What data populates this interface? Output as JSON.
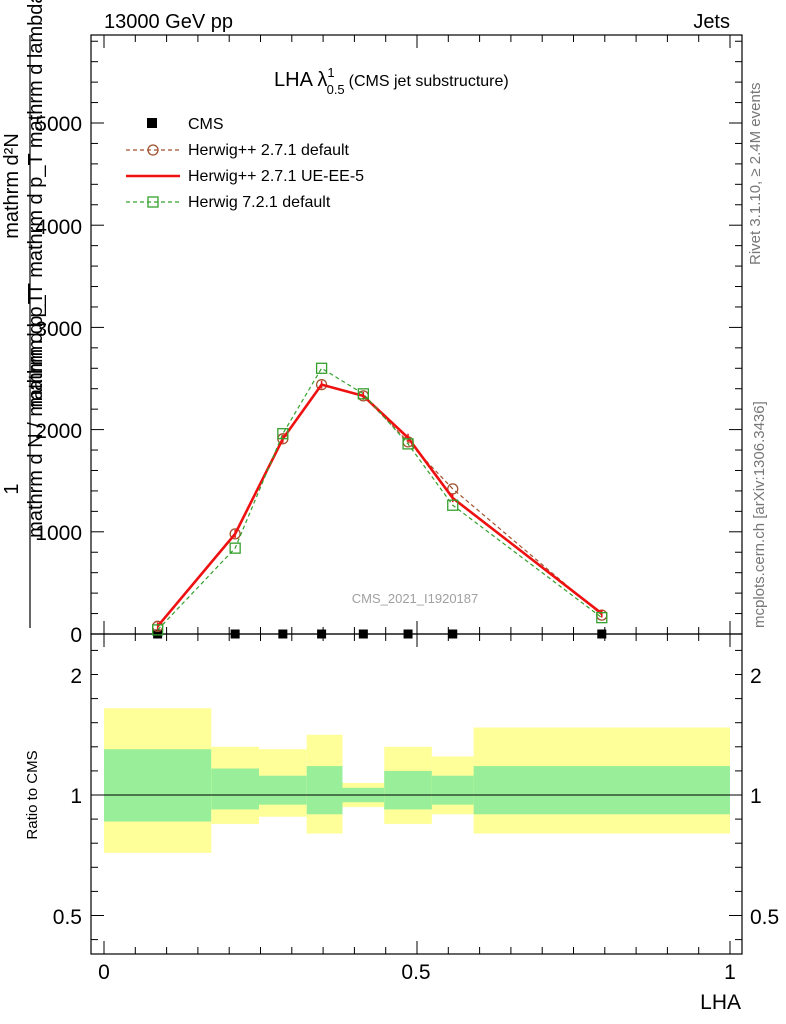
{
  "header": {
    "left": "13000 GeV pp",
    "right": "Jets"
  },
  "side_labels": {
    "rivet": "Rivet 3.1.10, ≥ 2.4M events",
    "mcplots": "mcplots.cern.ch [arXiv:1306.3436]"
  },
  "chart_data": [
    {
      "type": "line",
      "title_main": "LHA λ",
      "title_sup": "1",
      "title_sub": "0.5",
      "title_suffix": "(CMS jet substructure)",
      "watermark": "CMS_2021_I1920187",
      "ylabel_numerator": "mathrm d²N",
      "ylabel_denominator": "mathrm d p_T mathrm d p_T mathrm d lambda",
      "ylabel_prefix_num": "1",
      "ylabel_prefix_den": "mathrm d N / mathrm d p_T",
      "ylim": [
        0,
        5900
      ],
      "xlim": [
        -0.02,
        1.02
      ],
      "y_ticks": [
        "0",
        "1000",
        "2000",
        "3000",
        "4000",
        "5000"
      ],
      "x": [
        0.0857,
        0.2095,
        0.2857,
        0.3476,
        0.4143,
        0.4857,
        0.5571,
        0.7952
      ],
      "series": [
        {
          "name": "CMS",
          "values": [
            0,
            0,
            0,
            0,
            0,
            0,
            0,
            0
          ],
          "color": "#000000",
          "marker": "square-filled"
        },
        {
          "name": "Herwig++ 2.7.1 default",
          "values": [
            75,
            980,
            1910,
            2440,
            2330,
            1880,
            1420,
            185
          ],
          "color": "#a0522d",
          "marker": "circle-open",
          "dash": true
        },
        {
          "name": "Herwig++ 2.7.1 UE-EE-5",
          "values": [
            75,
            980,
            1910,
            2440,
            2330,
            1920,
            1330,
            200
          ],
          "color": "#ee1111",
          "marker": "none",
          "dash": false
        },
        {
          "name": "Herwig 7.2.1 default",
          "values": [
            40,
            840,
            1960,
            2600,
            2350,
            1860,
            1260,
            160
          ],
          "color": "#33a02c",
          "marker": "square-open",
          "dash": true
        }
      ]
    },
    {
      "type": "band",
      "ylabel": "Ratio to CMS",
      "xlabel": "LHA",
      "ylim": [
        0.35,
        2.25
      ],
      "y_ticks": [
        "0.5",
        "1",
        "2"
      ],
      "x_ticks": [
        "0",
        "0.5",
        "1"
      ],
      "bins": [
        {
          "lo": 0.0,
          "hi": 0.1714,
          "green": [
            0.89,
            1.19
          ],
          "yellow": [
            0.76,
            1.36
          ]
        },
        {
          "lo": 0.1714,
          "hi": 0.2476,
          "green": [
            0.94,
            1.11
          ],
          "yellow": [
            0.88,
            1.2
          ]
        },
        {
          "lo": 0.2476,
          "hi": 0.3238,
          "green": [
            0.96,
            1.08
          ],
          "yellow": [
            0.91,
            1.19
          ]
        },
        {
          "lo": 0.3238,
          "hi": 0.381,
          "green": [
            0.92,
            1.12
          ],
          "yellow": [
            0.84,
            1.25
          ]
        },
        {
          "lo": 0.381,
          "hi": 0.4476,
          "green": [
            0.97,
            1.03
          ],
          "yellow": [
            0.95,
            1.05
          ]
        },
        {
          "lo": 0.4476,
          "hi": 0.5238,
          "green": [
            0.94,
            1.1
          ],
          "yellow": [
            0.88,
            1.2
          ]
        },
        {
          "lo": 0.5238,
          "hi": 0.5905,
          "green": [
            0.96,
            1.08
          ],
          "yellow": [
            0.92,
            1.16
          ]
        },
        {
          "lo": 0.5905,
          "hi": 1.0,
          "green": [
            0.92,
            1.12
          ],
          "yellow": [
            0.84,
            1.28
          ]
        }
      ],
      "band_colors": {
        "green": "#99ee99",
        "yellow": "#ffff99"
      },
      "reference": 1
    }
  ]
}
